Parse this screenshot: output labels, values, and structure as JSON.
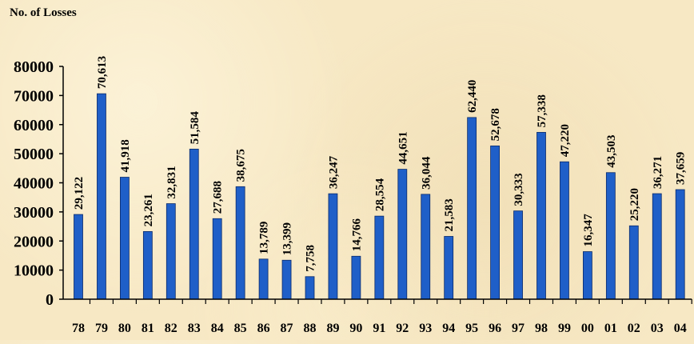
{
  "chart_data": {
    "type": "bar",
    "ylabel": "No. of Losses",
    "xlabel": "",
    "ylim": [
      0,
      80000
    ],
    "yticks": [
      "0",
      "10000",
      "20000",
      "30000",
      "40000",
      "50000",
      "60000",
      "70000",
      "80000"
    ],
    "categories": [
      "78",
      "79",
      "80",
      "81",
      "82",
      "83",
      "84",
      "85",
      "86",
      "87",
      "88",
      "89",
      "90",
      "91",
      "92",
      "93",
      "94",
      "95",
      "96",
      "97",
      "98",
      "99",
      "00",
      "01",
      "02",
      "03",
      "04"
    ],
    "values": [
      29122,
      70613,
      41918,
      23261,
      32831,
      51584,
      27688,
      38675,
      13789,
      13399,
      7758,
      36247,
      14766,
      28554,
      44651,
      36044,
      21583,
      62440,
      52678,
      30333,
      57338,
      47220,
      16347,
      43503,
      25220,
      36271,
      37659
    ],
    "data_labels": [
      "29,122",
      "70,613",
      "41,918",
      "23,261",
      "32,831",
      "51,584",
      "27,688",
      "38,675",
      "13,789",
      "13,399",
      "7,758",
      "36,247",
      "14,766",
      "28,554",
      "44,651",
      "36,044",
      "21,583",
      "62,440",
      "52,678",
      "30,333",
      "57,338",
      "47,220",
      "16,347",
      "43,503",
      "25,220",
      "36,271",
      "37,659"
    ],
    "grid": false,
    "legend": "none",
    "colors": {
      "bar": "#1f5fc8",
      "bar_edge": "#0a2a6a",
      "axis": "#000000"
    }
  }
}
